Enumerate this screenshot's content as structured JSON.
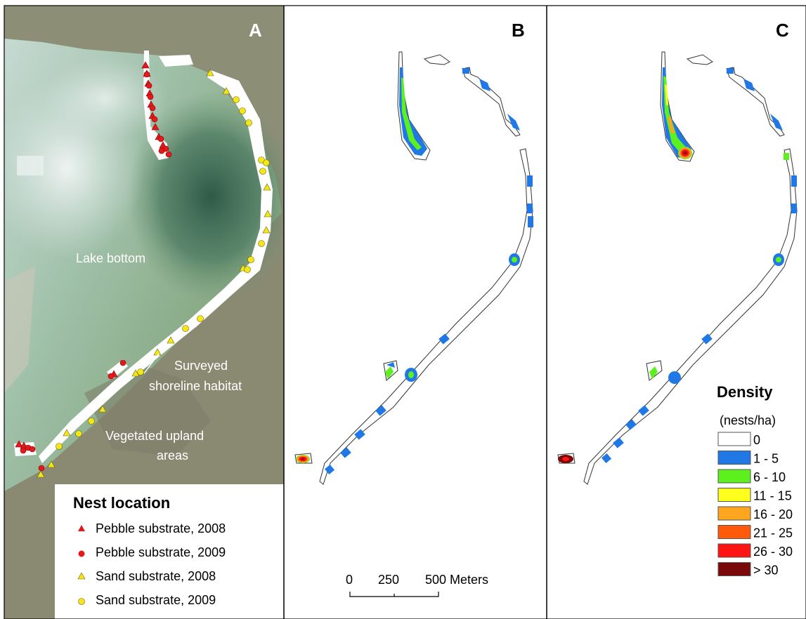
{
  "panels": {
    "a": {
      "letter": "A"
    },
    "b": {
      "letter": "B"
    },
    "c": {
      "letter": "C"
    }
  },
  "map_labels": {
    "lake_bottom": "Lake bottom",
    "surveyed_line1": "Surveyed",
    "surveyed_line2": "shoreline habitat",
    "upland_line1": "Vegetated upland",
    "upland_line2": "areas"
  },
  "nest_legend": {
    "title": "Nest location",
    "items": [
      {
        "label": "Pebble substrate, 2008",
        "symbol": "triangle",
        "color": "#e3191c"
      },
      {
        "label": "Pebble substrate, 2009",
        "symbol": "circle",
        "color": "#e3191c"
      },
      {
        "label": "Sand substrate, 2008",
        "symbol": "triangle",
        "color": "#f5e61a"
      },
      {
        "label": "Sand substrate, 2009",
        "symbol": "circle",
        "color": "#f5e61a"
      }
    ]
  },
  "scale_bar": {
    "ticks": [
      "0",
      "250",
      "500 Meters"
    ]
  },
  "density_legend": {
    "title": "Density",
    "unit": "(nests/ha)",
    "classes": [
      {
        "label": "0",
        "color": "#ffffff"
      },
      {
        "label": "1 - 5",
        "color": "#1f78e6"
      },
      {
        "label": "6 - 10",
        "color": "#5cf01e"
      },
      {
        "label": "11 - 15",
        "color": "#ffff1e"
      },
      {
        "label": "16 - 20",
        "color": "#ffa51e"
      },
      {
        "label": "21 - 25",
        "color": "#ff5a0a"
      },
      {
        "label": "26 - 30",
        "color": "#ff1414"
      },
      {
        "label": "> 30",
        "color": "#7a0a0a"
      }
    ]
  },
  "colors": {
    "pebble": "#e3191c",
    "sand": "#f5e61a",
    "low_density": "#1f78e6",
    "mid_density": "#5cf01e"
  }
}
